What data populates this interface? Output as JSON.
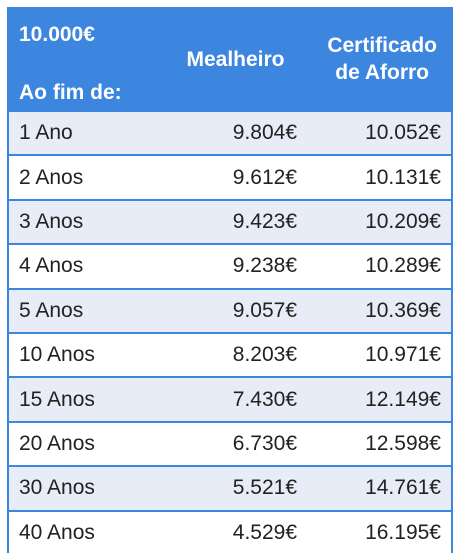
{
  "header": {
    "amount": "10.000€",
    "period_label": "Ao fim de:",
    "col1": "Mealheiro",
    "col2_line1": "Certificado",
    "col2_line2": "de Aforro"
  },
  "rows": [
    {
      "period": "1 Ano",
      "mealheiro": "9.804€",
      "certificado": "10.052€"
    },
    {
      "period": "2 Anos",
      "mealheiro": "9.612€",
      "certificado": "10.131€"
    },
    {
      "period": "3 Anos",
      "mealheiro": "9.423€",
      "certificado": "10.209€"
    },
    {
      "period": "4 Anos",
      "mealheiro": "9.238€",
      "certificado": "10.289€"
    },
    {
      "period": "5 Anos",
      "mealheiro": "9.057€",
      "certificado": "10.369€"
    },
    {
      "period": "10 Anos",
      "mealheiro": "8.203€",
      "certificado": "10.971€"
    },
    {
      "period": "15 Anos",
      "mealheiro": "7.430€",
      "certificado": "12.149€"
    },
    {
      "period": "20 Anos",
      "mealheiro": "6.730€",
      "certificado": "12.598€"
    },
    {
      "period": "30 Anos",
      "mealheiro": "5.521€",
      "certificado": "14.761€"
    },
    {
      "period": "40 Anos",
      "mealheiro": "4.529€",
      "certificado": "16.195€"
    }
  ],
  "colors": {
    "header_bg": "#3d86e0",
    "header_text": "#ffffff",
    "row_alt_bg": "#e8ecf6",
    "row_bg": "#ffffff",
    "border": "#3d86e0"
  }
}
